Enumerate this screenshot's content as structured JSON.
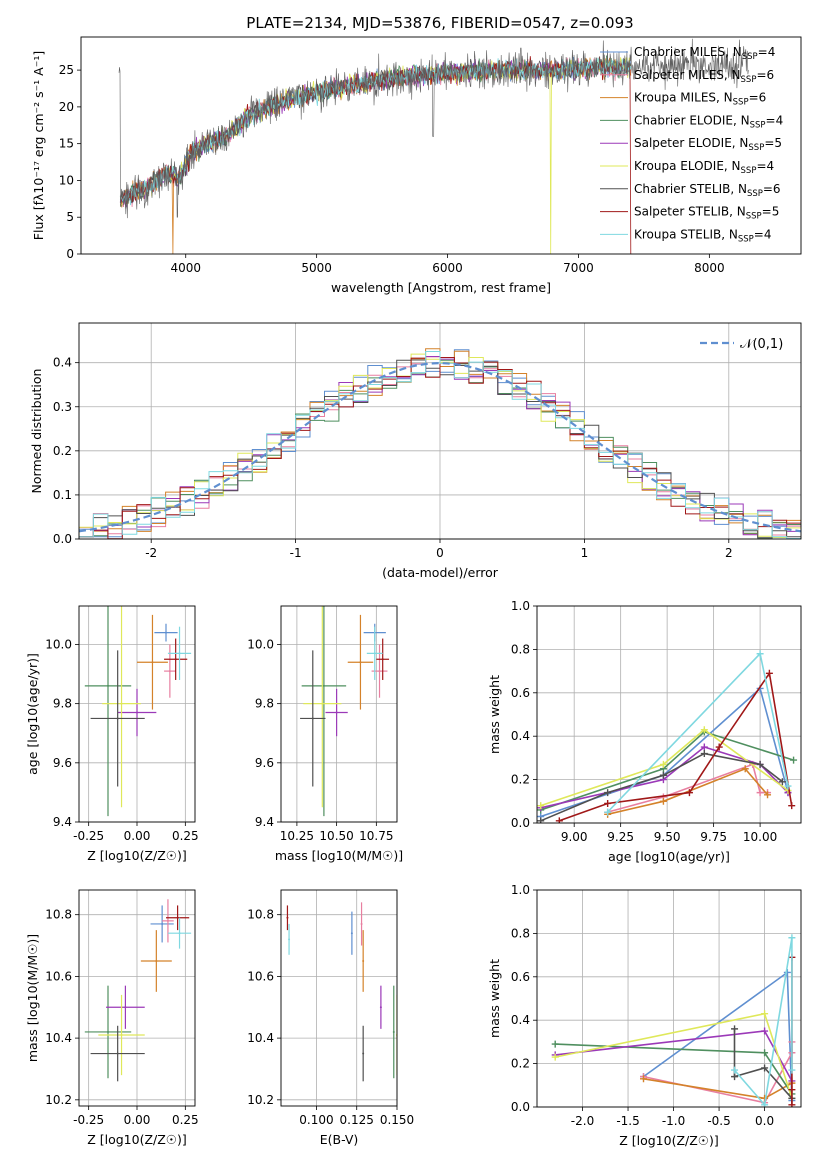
{
  "title": "PLATE=2134, MJD=53876, FIBERID=0547, z=0.093",
  "models": [
    {
      "name": "Chabrier MILES",
      "nssp": "4",
      "color": "#5f8fd0"
    },
    {
      "name": "Salpeter MILES",
      "nssp": "6",
      "color": "#e87fa0"
    },
    {
      "name": "Kroupa MILES",
      "nssp": "6",
      "color": "#d4822a"
    },
    {
      "name": "Chabrier ELODIE",
      "nssp": "4",
      "color": "#4f8f5f"
    },
    {
      "name": "Salpeter ELODIE",
      "nssp": "5",
      "color": "#9b39b8"
    },
    {
      "name": "Kroupa ELODIE",
      "nssp": "4",
      "color": "#dfe85a"
    },
    {
      "name": "Chabrier STELIB",
      "nssp": "6",
      "color": "#505050"
    },
    {
      "name": "Salpeter STELIB",
      "nssp": "5",
      "color": "#a01818"
    },
    {
      "name": "Kroupa STELIB",
      "nssp": "4",
      "color": "#7fd8e0"
    }
  ],
  "chart_data": [
    {
      "id": "spectrum",
      "type": "line",
      "xlabel": "wavelength [Angstrom, rest frame]",
      "ylabel": "Flux [fλ10⁻¹⁷ erg cm⁻² s⁻¹ A⁻¹]",
      "xlim": [
        3200,
        8700
      ],
      "ylim": [
        0,
        29.5
      ],
      "xticks": [
        4000,
        5000,
        6000,
        7000,
        8000
      ],
      "yticks": [
        0,
        5,
        10,
        15,
        20,
        25
      ],
      "continuum": [
        [
          3500,
          7.5
        ],
        [
          3700,
          9
        ],
        [
          3850,
          11
        ],
        [
          3950,
          10.5
        ],
        [
          4050,
          14
        ],
        [
          4300,
          16
        ],
        [
          4500,
          19
        ],
        [
          4800,
          21
        ],
        [
          5000,
          22
        ],
        [
          5300,
          23
        ],
        [
          5600,
          24
        ],
        [
          5900,
          24.5
        ],
        [
          6200,
          24.8
        ],
        [
          6500,
          25
        ],
        [
          6800,
          25
        ],
        [
          7100,
          25.3
        ],
        [
          7400,
          25.5
        ]
      ],
      "grid": false
    },
    {
      "id": "residuals",
      "type": "line",
      "xlabel": "(data-model)/error",
      "ylabel": "Normed distribution",
      "xlim": [
        -2.5,
        2.5
      ],
      "ylim": [
        0,
        0.49
      ],
      "xticks": [
        -2,
        -1,
        0,
        1,
        2
      ],
      "yticks": [
        0.0,
        0.1,
        0.2,
        0.3,
        0.4
      ],
      "legend": "𝒩(0,1)",
      "legend_position": "top-right",
      "grid": true
    },
    {
      "id": "age_vs_Z",
      "type": "scatter",
      "xlabel": "Z [log10(Z/Z☉)]",
      "ylabel": "age [log10(age/yr)]",
      "xlim": [
        -0.3,
        0.3
      ],
      "ylim": [
        9.4,
        10.13
      ],
      "xticks": [
        -0.25,
        0.0,
        0.25
      ],
      "yticks": [
        9.4,
        9.6,
        9.8,
        10.0
      ],
      "points": [
        {
          "x": 0.15,
          "y": 10.04,
          "xerr": 0.06,
          "yerr": 0.03
        },
        {
          "x": 0.17,
          "y": 9.91,
          "xerr": 0.03,
          "yerr": 0.09
        },
        {
          "x": 0.08,
          "y": 9.94,
          "xerr": 0.08,
          "yerr": 0.16
        },
        {
          "x": -0.15,
          "y": 9.86,
          "xerr": 0.12,
          "yerr": 0.44
        },
        {
          "x": 0.0,
          "y": 9.77,
          "xerr": 0.1,
          "yerr": 0.08
        },
        {
          "x": -0.08,
          "y": 9.8,
          "xerr": 0.1,
          "yerr": 0.35
        },
        {
          "x": -0.1,
          "y": 9.75,
          "xerr": 0.14,
          "yerr": 0.23
        },
        {
          "x": 0.2,
          "y": 9.95,
          "xerr": 0.06,
          "yerr": 0.07
        },
        {
          "x": 0.22,
          "y": 9.97,
          "xerr": 0.06,
          "yerr": 0.09
        }
      ]
    },
    {
      "id": "age_vs_mass",
      "type": "scatter",
      "xlabel": "mass [log10(M/M☉)]",
      "ylabel": "",
      "xlim": [
        10.15,
        10.88
      ],
      "ylim": [
        9.4,
        10.13
      ],
      "xticks": [
        10.25,
        10.5,
        10.75
      ],
      "yticks": [
        9.4,
        9.6,
        9.8,
        10.0
      ],
      "points": [
        {
          "x": 10.74,
          "y": 10.04,
          "xerr": 0.07,
          "yerr": 0.03
        },
        {
          "x": 10.77,
          "y": 9.91,
          "xerr": 0.05,
          "yerr": 0.09
        },
        {
          "x": 10.65,
          "y": 9.94,
          "xerr": 0.08,
          "yerr": 0.16
        },
        {
          "x": 10.42,
          "y": 9.86,
          "xerr": 0.14,
          "yerr": 0.44
        },
        {
          "x": 10.5,
          "y": 9.77,
          "xerr": 0.07,
          "yerr": 0.08
        },
        {
          "x": 10.41,
          "y": 9.8,
          "xerr": 0.12,
          "yerr": 0.35
        },
        {
          "x": 10.35,
          "y": 9.75,
          "xerr": 0.08,
          "yerr": 0.23
        },
        {
          "x": 10.79,
          "y": 9.95,
          "xerr": 0.04,
          "yerr": 0.07
        },
        {
          "x": 10.74,
          "y": 9.97,
          "xerr": 0.05,
          "yerr": 0.09
        }
      ]
    },
    {
      "id": "massweight_vs_age",
      "type": "line",
      "xlabel": "age [log10(age/yr)]",
      "ylabel": "mass weight",
      "xlim": [
        8.8,
        10.22
      ],
      "ylim": [
        0,
        1.0
      ],
      "xticks": [
        9.0,
        9.25,
        9.5,
        9.75,
        10.0
      ],
      "yticks": [
        0.0,
        0.2,
        0.4,
        0.6,
        0.8,
        1.0
      ],
      "series": [
        {
          "x": [
            8.82,
            9.48,
            10.0,
            10.15
          ],
          "y": [
            0.03,
            0.22,
            0.62,
            0.14
          ]
        },
        {
          "x": [
            9.18,
            9.48,
            9.96,
            10.0,
            10.04
          ],
          "y": [
            0.05,
            0.12,
            0.27,
            0.14,
            0.14
          ]
        },
        {
          "x": [
            9.18,
            9.48,
            9.92,
            10.04
          ],
          "y": [
            0.04,
            0.1,
            0.25,
            0.13
          ]
        },
        {
          "x": [
            8.82,
            9.48,
            9.7,
            10.18
          ],
          "y": [
            0.06,
            0.25,
            0.42,
            0.29
          ]
        },
        {
          "x": [
            8.82,
            9.48,
            9.7,
            10.0,
            10.15
          ],
          "y": [
            0.07,
            0.2,
            0.35,
            0.27,
            0.14
          ]
        },
        {
          "x": [
            8.82,
            9.48,
            9.7,
            10.15
          ],
          "y": [
            0.08,
            0.27,
            0.43,
            0.15
          ]
        },
        {
          "x": [
            8.82,
            9.18,
            9.48,
            9.7,
            10.0,
            10.12
          ],
          "y": [
            0.01,
            0.14,
            0.22,
            0.32,
            0.27,
            0.19
          ]
        },
        {
          "x": [
            8.92,
            9.18,
            9.62,
            9.78,
            10.05,
            10.17
          ],
          "y": [
            0.01,
            0.09,
            0.14,
            0.35,
            0.69,
            0.08
          ]
        },
        {
          "x": [
            9.18,
            10.0,
            10.15
          ],
          "y": [
            0.05,
            0.78,
            0.17
          ]
        }
      ]
    },
    {
      "id": "mass_vs_Z",
      "type": "scatter",
      "xlabel": "Z [log10(Z/Z☉)]",
      "ylabel": "mass [log10(M/M☉)]",
      "xlim": [
        -0.3,
        0.3
      ],
      "ylim": [
        10.18,
        10.88
      ],
      "xticks": [
        -0.25,
        0.0,
        0.25
      ],
      "yticks": [
        10.2,
        10.4,
        10.6,
        10.8
      ],
      "points": [
        {
          "x": 0.13,
          "y": 10.77,
          "xerr": 0.06,
          "yerr": 0.06
        },
        {
          "x": 0.16,
          "y": 10.78,
          "xerr": 0.03,
          "yerr": 0.07
        },
        {
          "x": 0.1,
          "y": 10.65,
          "xerr": 0.08,
          "yerr": 0.1
        },
        {
          "x": -0.15,
          "y": 10.42,
          "xerr": 0.12,
          "yerr": 0.15
        },
        {
          "x": -0.06,
          "y": 10.5,
          "xerr": 0.1,
          "yerr": 0.07
        },
        {
          "x": -0.08,
          "y": 10.41,
          "xerr": 0.12,
          "yerr": 0.13
        },
        {
          "x": -0.1,
          "y": 10.35,
          "xerr": 0.14,
          "yerr": 0.09
        },
        {
          "x": 0.21,
          "y": 10.79,
          "xerr": 0.06,
          "yerr": 0.04
        },
        {
          "x": 0.22,
          "y": 10.74,
          "xerr": 0.06,
          "yerr": 0.05
        }
      ]
    },
    {
      "id": "mass_vs_ebv",
      "type": "scatter",
      "xlabel": "E(B-V)",
      "ylabel": "",
      "xlim": [
        0.078,
        0.15
      ],
      "ylim": [
        10.18,
        10.88
      ],
      "xticks": [
        0.1,
        0.125,
        0.15
      ],
      "yticks": [
        10.2,
        10.4,
        10.6,
        10.8
      ],
      "points": [
        {
          "x": 0.122,
          "y": 10.74,
          "yerr": 0.07
        },
        {
          "x": 0.128,
          "y": 10.77,
          "yerr": 0.07
        },
        {
          "x": 0.129,
          "y": 10.65,
          "yerr": 0.1
        },
        {
          "x": 0.148,
          "y": 10.42,
          "yerr": 0.15
        },
        {
          "x": 0.14,
          "y": 10.5,
          "yerr": 0.07
        },
        {
          "x": 0.15,
          "y": 10.41,
          "yerr": 0.13
        },
        {
          "x": 0.129,
          "y": 10.35,
          "yerr": 0.09
        },
        {
          "x": 0.082,
          "y": 10.79,
          "yerr": 0.04
        },
        {
          "x": 0.083,
          "y": 10.72,
          "yerr": 0.05
        }
      ]
    },
    {
      "id": "massweight_vs_Z",
      "type": "line",
      "xlabel": "Z [log10(Z/Z☉)]",
      "ylabel": "mass weight",
      "xlim": [
        -2.5,
        0.4
      ],
      "ylim": [
        0,
        1.0
      ],
      "xticks": [
        -2.0,
        -1.5,
        -1.0,
        -0.5,
        0.0
      ],
      "yticks": [
        0.0,
        0.2,
        0.4,
        0.6,
        0.8,
        1.0
      ],
      "series": [
        {
          "x": [
            -1.33,
            0.25,
            0.3
          ],
          "y": [
            0.14,
            0.62,
            0.03
          ]
        },
        {
          "x": [
            -1.33,
            0.0,
            0.3,
            0.3
          ],
          "y": [
            0.14,
            0.02,
            0.25,
            0.3
          ]
        },
        {
          "x": [
            -1.33,
            0.0,
            0.3
          ],
          "y": [
            0.13,
            0.04,
            0.11
          ]
        },
        {
          "x": [
            -2.3,
            0.0,
            0.3
          ],
          "y": [
            0.29,
            0.25,
            0.06
          ]
        },
        {
          "x": [
            -2.3,
            0.0,
            0.3
          ],
          "y": [
            0.24,
            0.35,
            0.12
          ]
        },
        {
          "x": [
            -2.3,
            0.0,
            0.3
          ],
          "y": [
            0.23,
            0.43,
            0.04
          ]
        },
        {
          "x": [
            -0.33,
            -0.33,
            0.0,
            0.3
          ],
          "y": [
            0.36,
            0.14,
            0.18,
            0.04
          ]
        },
        {
          "x": [
            0.3,
            0.3,
            0.3
          ],
          "y": [
            0.69,
            0.08,
            0.01
          ]
        },
        {
          "x": [
            -0.33,
            0.0,
            0.3,
            0.3
          ],
          "y": [
            0.17,
            0.01,
            0.78,
            0.17
          ]
        }
      ]
    }
  ]
}
